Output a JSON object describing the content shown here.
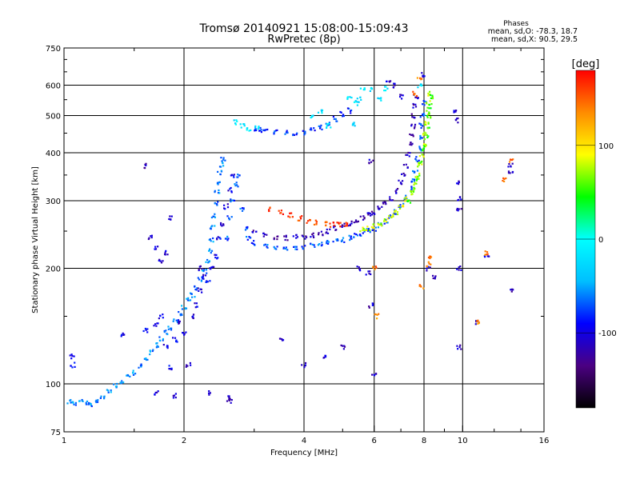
{
  "chart_data": {
    "type": "scatter",
    "title": "Tromsø 20140921 15:08:00-15:09:43",
    "subtitle": "RwPretec (8p)",
    "xlabel": "Frequency [MHz]",
    "ylabel": "Stationary phase Virtual Height [km]",
    "x_scale": "log",
    "y_scale": "log",
    "xlim": [
      1,
      16
    ],
    "ylim": [
      75,
      750
    ],
    "x_ticks": [
      1,
      2,
      4,
      6,
      8,
      10,
      16
    ],
    "x_tick_labels": [
      "1",
      "2",
      "4",
      "6",
      "8",
      "10",
      "16"
    ],
    "y_ticks": [
      75,
      100,
      200,
      300,
      400,
      500,
      600,
      750
    ],
    "y_tick_labels": [
      "75",
      "100",
      "200",
      "300",
      "400",
      "500",
      "600",
      "750"
    ],
    "grid": true,
    "phase_info": {
      "title": "Phases",
      "line_o": "mean, sd,O: -78.3, 18.7",
      "line_x": "mean, sd,X: 90.5, 29.5"
    },
    "colorbar": {
      "label": "[deg]",
      "min": -180,
      "max": 180,
      "ticks": [
        100,
        0,
        -100
      ],
      "tick_labels": [
        "100",
        "0",
        "-100"
      ],
      "colors": [
        "#000000",
        "#4b0082",
        "#0000ff",
        "#00bfff",
        "#00ffff",
        "#00ff00",
        "#ffff00",
        "#ff8c00",
        "#ff0000"
      ]
    },
    "series": [
      {
        "points": [
          [
            1.03,
            90
          ],
          [
            1.06,
            89
          ],
          [
            1.1,
            90
          ],
          [
            1.14,
            89
          ],
          [
            1.17,
            88
          ],
          [
            1.2,
            90
          ],
          [
            1.25,
            93
          ],
          [
            1.3,
            96
          ],
          [
            1.35,
            99
          ],
          [
            1.4,
            101
          ],
          [
            1.45,
            104
          ],
          [
            1.5,
            107
          ],
          [
            1.55,
            111
          ],
          [
            1.6,
            116
          ],
          [
            1.65,
            121
          ],
          [
            1.7,
            126
          ],
          [
            1.75,
            131
          ],
          [
            1.8,
            136
          ],
          [
            1.85,
            140
          ],
          [
            1.9,
            146
          ],
          [
            1.95,
            152
          ],
          [
            2.0,
            158
          ],
          [
            2.05,
            165
          ],
          [
            2.1,
            170
          ],
          [
            2.15,
            178
          ],
          [
            2.2,
            187
          ],
          [
            2.25,
            196
          ],
          [
            2.3,
            208
          ],
          [
            2.32,
            222
          ],
          [
            2.34,
            238
          ],
          [
            2.36,
            256
          ],
          [
            2.38,
            275
          ],
          [
            2.4,
            295
          ],
          [
            2.42,
            315
          ],
          [
            2.44,
            335
          ],
          [
            2.46,
            355
          ],
          [
            2.48,
            372
          ],
          [
            2.5,
            385
          ]
        ],
        "phase": -60
      },
      {
        "points": [
          [
            1.05,
            118
          ],
          [
            1.05,
            112
          ],
          [
            1.4,
            135
          ],
          [
            1.6,
            138
          ],
          [
            1.7,
            142
          ],
          [
            1.75,
            150
          ],
          [
            1.8,
            125
          ],
          [
            1.85,
            110
          ],
          [
            1.9,
            130
          ],
          [
            1.95,
            145
          ],
          [
            2.0,
            135
          ],
          [
            2.05,
            112
          ],
          [
            2.1,
            150
          ],
          [
            2.15,
            160
          ],
          [
            2.2,
            175
          ],
          [
            2.25,
            190
          ],
          [
            2.3,
            185
          ],
          [
            2.35,
            200
          ],
          [
            2.4,
            215
          ],
          [
            2.45,
            240
          ],
          [
            2.5,
            260
          ],
          [
            2.55,
            290
          ],
          [
            2.6,
            320
          ],
          [
            2.65,
            350
          ]
        ],
        "phase": -100
      },
      {
        "points": [
          [
            2.55,
            240
          ],
          [
            2.6,
            270
          ],
          [
            2.65,
            300
          ],
          [
            2.7,
            330
          ],
          [
            2.75,
            350
          ],
          [
            2.8,
            285
          ],
          [
            2.85,
            255
          ],
          [
            2.9,
            240
          ],
          [
            3.0,
            233
          ],
          [
            3.2,
            229
          ],
          [
            3.4,
            227
          ],
          [
            3.6,
            226
          ],
          [
            3.8,
            227
          ],
          [
            4.0,
            228
          ],
          [
            4.2,
            229
          ],
          [
            4.4,
            231
          ],
          [
            4.6,
            233
          ],
          [
            4.8,
            235
          ],
          [
            5.0,
            237
          ],
          [
            5.2,
            240
          ],
          [
            5.4,
            243
          ],
          [
            5.6,
            246
          ],
          [
            5.8,
            250
          ],
          [
            6.0,
            254
          ],
          [
            6.2,
            259
          ],
          [
            6.4,
            265
          ],
          [
            6.6,
            272
          ],
          [
            6.8,
            281
          ],
          [
            7.0,
            292
          ],
          [
            7.2,
            305
          ],
          [
            7.4,
            322
          ],
          [
            7.5,
            340
          ],
          [
            7.6,
            360
          ],
          [
            7.7,
            385
          ],
          [
            7.8,
            410
          ],
          [
            7.85,
            440
          ],
          [
            7.9,
            470
          ],
          [
            7.95,
            500
          ],
          [
            8.0,
            540
          ]
        ],
        "phase": -70
      },
      {
        "points": [
          [
            3.0,
            248
          ],
          [
            3.2,
            244
          ],
          [
            3.4,
            241
          ],
          [
            3.6,
            240
          ],
          [
            3.8,
            241
          ],
          [
            4.0,
            242
          ],
          [
            4.2,
            244
          ],
          [
            4.4,
            247
          ],
          [
            4.6,
            250
          ],
          [
            4.8,
            254
          ],
          [
            5.0,
            258
          ],
          [
            5.2,
            262
          ],
          [
            5.4,
            266
          ],
          [
            5.6,
            270
          ],
          [
            5.8,
            275
          ],
          [
            6.0,
            280
          ],
          [
            6.2,
            287
          ],
          [
            6.4,
            295
          ],
          [
            6.6,
            305
          ],
          [
            6.8,
            318
          ],
          [
            7.0,
            335
          ],
          [
            7.1,
            350
          ],
          [
            7.2,
            370
          ],
          [
            7.3,
            395
          ],
          [
            7.4,
            420
          ],
          [
            7.45,
            445
          ],
          [
            7.5,
            470
          ],
          [
            7.55,
            500
          ],
          [
            7.6,
            530
          ],
          [
            7.65,
            560
          ]
        ],
        "phase": -115
      },
      {
        "points": [
          [
            3.0,
            460
          ],
          [
            3.1,
            458
          ],
          [
            3.2,
            455
          ],
          [
            3.4,
            452
          ],
          [
            3.6,
            451
          ],
          [
            3.8,
            451
          ],
          [
            4.0,
            453
          ],
          [
            4.2,
            458
          ],
          [
            4.4,
            466
          ],
          [
            4.6,
            477
          ],
          [
            4.8,
            490
          ],
          [
            5.0,
            505
          ],
          [
            5.2,
            515
          ]
        ],
        "phase": -80
      },
      {
        "points": [
          [
            3.3,
            285
          ],
          [
            3.5,
            280
          ],
          [
            3.7,
            275
          ],
          [
            3.9,
            270
          ],
          [
            4.1,
            266
          ],
          [
            4.3,
            263
          ],
          [
            4.5,
            261
          ],
          [
            4.7,
            260
          ],
          [
            4.9,
            260
          ],
          [
            5.1,
            261
          ]
        ],
        "phase": 160
      },
      {
        "points": [
          [
            5.6,
            252
          ],
          [
            5.8,
            255
          ],
          [
            6.0,
            258
          ],
          [
            6.2,
            262
          ],
          [
            6.4,
            267
          ],
          [
            6.6,
            273
          ],
          [
            6.8,
            280
          ],
          [
            7.0,
            290
          ],
          [
            7.2,
            302
          ],
          [
            7.4,
            316
          ],
          [
            7.6,
            335
          ],
          [
            7.7,
            350
          ],
          [
            7.8,
            370
          ],
          [
            7.9,
            395
          ],
          [
            8.0,
            420
          ],
          [
            8.05,
            450
          ],
          [
            8.1,
            480
          ],
          [
            8.15,
            510
          ],
          [
            8.2,
            540
          ],
          [
            8.25,
            570
          ]
        ],
        "phase": 80
      },
      {
        "points": [
          [
            7.3,
            300
          ],
          [
            7.5,
            320
          ],
          [
            7.7,
            345
          ],
          [
            7.85,
            375
          ],
          [
            8.0,
            410
          ],
          [
            8.1,
            440
          ],
          [
            8.15,
            470
          ],
          [
            8.2,
            500
          ],
          [
            8.25,
            530
          ],
          [
            8.3,
            560
          ]
        ],
        "phase": 55
      },
      {
        "points": [
          [
            1.7,
            95
          ],
          [
            1.9,
            93
          ],
          [
            2.3,
            95
          ],
          [
            2.6,
            92
          ],
          [
            2.6,
            90
          ],
          [
            1.6,
            370
          ],
          [
            1.65,
            240
          ],
          [
            1.7,
            225
          ],
          [
            1.75,
            210
          ],
          [
            1.8,
            220
          ],
          [
            1.85,
            270
          ],
          [
            2.2,
            200
          ],
          [
            3.5,
            130
          ],
          [
            4.0,
            112
          ],
          [
            4.5,
            118
          ],
          [
            5.0,
            125
          ],
          [
            5.5,
            200
          ],
          [
            5.8,
            195
          ],
          [
            5.9,
            160
          ],
          [
            6.0,
            105
          ],
          [
            5.9,
            380
          ],
          [
            6.5,
            610
          ],
          [
            6.7,
            600
          ],
          [
            7.0,
            560
          ],
          [
            8.0,
            640
          ],
          [
            8.2,
            200
          ],
          [
            8.5,
            190
          ],
          [
            9.6,
            510
          ],
          [
            9.7,
            485
          ],
          [
            9.8,
            335
          ],
          [
            9.8,
            305
          ],
          [
            9.8,
            285
          ],
          [
            9.8,
            125
          ],
          [
            9.8,
            200
          ],
          [
            10.9,
            145
          ],
          [
            11.5,
            215
          ],
          [
            13.2,
            370
          ],
          [
            13.2,
            358
          ],
          [
            13.2,
            175
          ]
        ],
        "phase": -110
      },
      {
        "points": [
          [
            2.7,
            480
          ],
          [
            2.8,
            470
          ],
          [
            2.9,
            460
          ],
          [
            3.05,
            465
          ],
          [
            5.2,
            560
          ],
          [
            5.4,
            540
          ],
          [
            5.5,
            550
          ],
          [
            5.6,
            590
          ],
          [
            5.9,
            585
          ],
          [
            6.4,
            590
          ],
          [
            6.2,
            550
          ],
          [
            7.8,
            600
          ],
          [
            4.2,
            500
          ],
          [
            4.4,
            510
          ],
          [
            4.6,
            470
          ],
          [
            5.3,
            475
          ]
        ],
        "phase": -20
      },
      {
        "points": [
          [
            7.9,
            180
          ],
          [
            8.2,
            205
          ],
          [
            8.25,
            215
          ],
          [
            11.0,
            145
          ],
          [
            11.4,
            220
          ],
          [
            12.7,
            340
          ],
          [
            13.2,
            380
          ],
          [
            6.1,
            150
          ],
          [
            6.0,
            200
          ],
          [
            7.6,
            570
          ],
          [
            7.8,
            620
          ]
        ],
        "phase": 140
      }
    ]
  }
}
